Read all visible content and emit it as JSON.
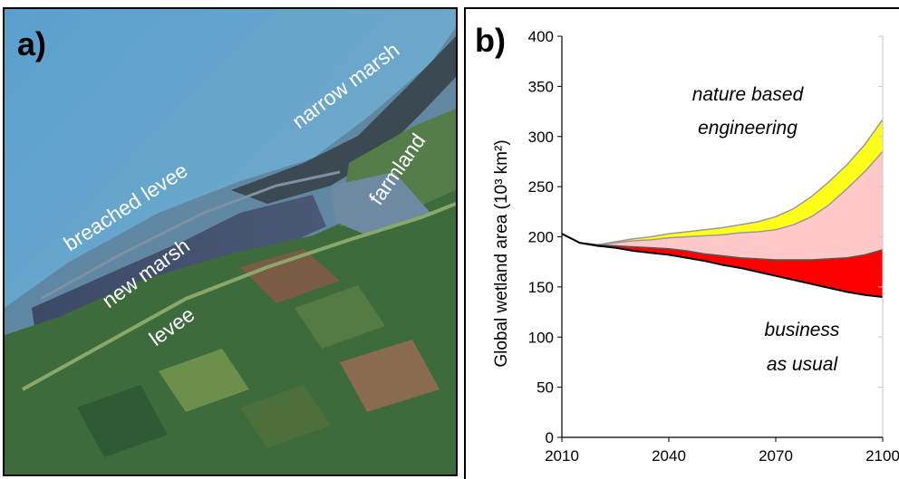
{
  "panel_a": {
    "letter": "a)",
    "labels": {
      "narrow_marsh": "narrow marsh",
      "breached_levee": "breached levee",
      "farmland": "farmland",
      "new_marsh": "new marsh",
      "levee": "levee"
    },
    "label_color": "#ffffff"
  },
  "panel_b": {
    "letter": "b)"
  },
  "chart_data": {
    "type": "area",
    "xlabel": "",
    "ylabel": "Global wetland area (10³ km²)",
    "ylim": [
      0,
      400
    ],
    "xlim": [
      2010,
      2100
    ],
    "x_ticks": [
      "2010",
      "2040",
      "2070",
      "2100"
    ],
    "y_ticks": [
      "0",
      "50",
      "100",
      "150",
      "200",
      "250",
      "300",
      "350",
      "400"
    ],
    "annotations": {
      "nature_line1": "nature based",
      "nature_line2": "engineering",
      "business_line1": "business",
      "business_line2": "as usual"
    },
    "colors": {
      "yellow": "#ffff1a",
      "pink": "#ffc8c8",
      "red": "#ff0000",
      "outline": "#000000"
    },
    "x": [
      2010,
      2015,
      2020,
      2025,
      2030,
      2035,
      2040,
      2045,
      2050,
      2055,
      2060,
      2065,
      2070,
      2075,
      2080,
      2085,
      2090,
      2095,
      2100
    ],
    "series": [
      {
        "values": [
          203,
          194,
          192,
          195,
          198,
          200,
          203,
          205,
          207,
          209,
          212,
          215,
          220,
          228,
          240,
          255,
          272,
          292,
          317
        ]
      },
      {
        "values": [
          203,
          194,
          192,
          194,
          196,
          197,
          199,
          200,
          201,
          202,
          204,
          205,
          207,
          212,
          220,
          232,
          248,
          265,
          285
        ]
      },
      {
        "values": [
          203,
          194,
          192,
          191,
          190,
          189,
          188,
          186,
          183,
          181,
          179,
          178,
          177,
          177,
          177,
          178,
          179,
          182,
          187
        ]
      },
      {
        "values": [
          203,
          194,
          191,
          189,
          186,
          184,
          182,
          179,
          176,
          172,
          169,
          165,
          161,
          157,
          153,
          149,
          145,
          142,
          140
        ]
      }
    ]
  }
}
